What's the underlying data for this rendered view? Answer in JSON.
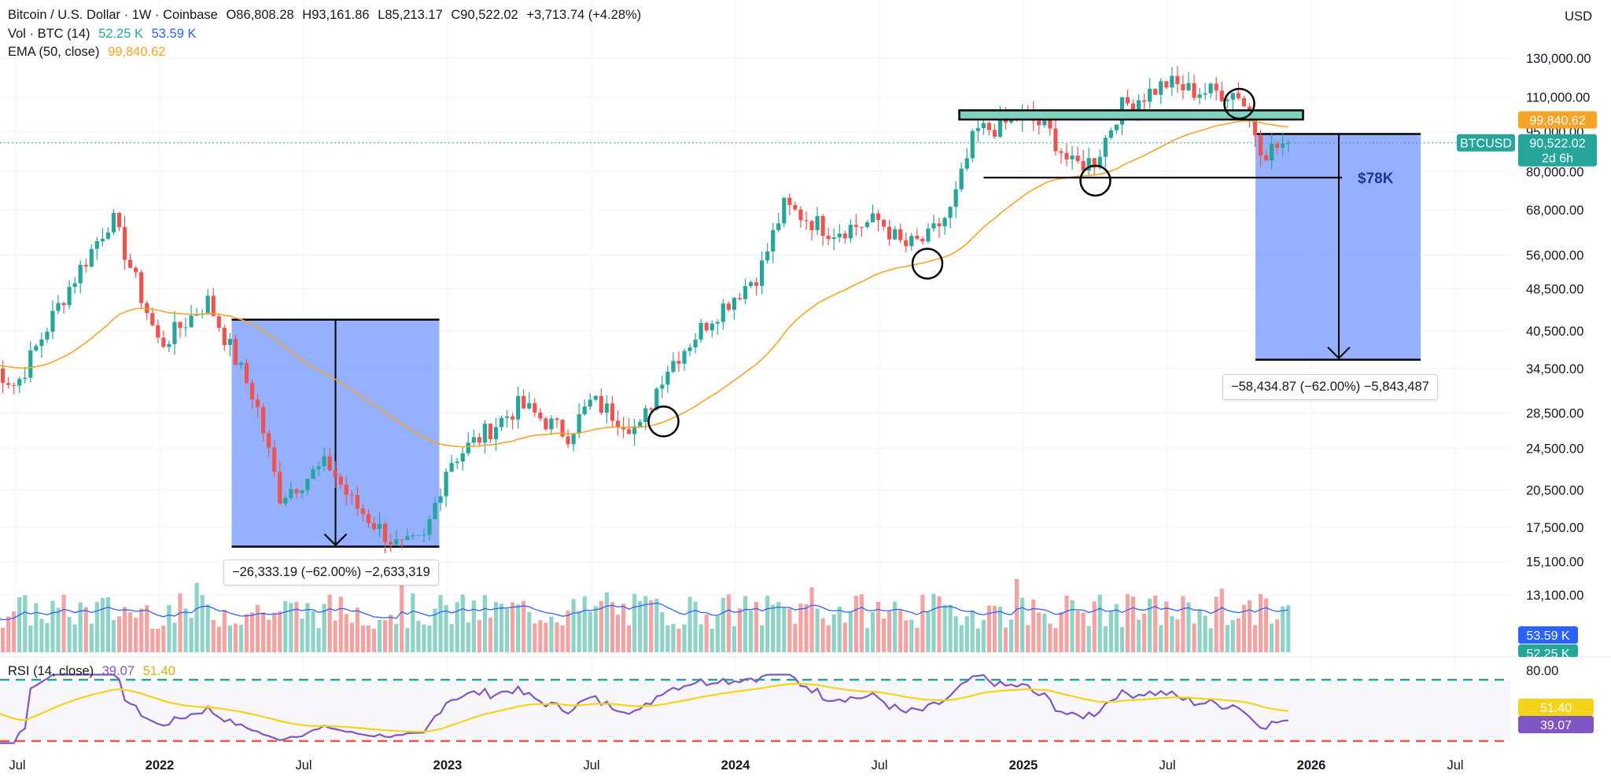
{
  "header": {
    "symbol": "Bitcoin / U.S. Dollar · 1W · Coinbase",
    "open": "O86,808.28",
    "high": "H93,161.86",
    "low": "L85,213.17",
    "close": "C90,522.02",
    "change": "+3,713.74 (+4.28%)",
    "vol_label": "Vol · BTC (14)",
    "vol_value1": "52.25 K",
    "vol_value2": "53.59 K",
    "ema_label": "EMA (50, close)",
    "ema_value": "99,840.62",
    "rsi_label": "RSI (14, close)",
    "rsi_value1": "39.07",
    "rsi_value2": "51.40",
    "currency": "USD"
  },
  "colors": {
    "up": "#26a69a",
    "down": "#ef5350",
    "vol_up": "#8fd2c7",
    "vol_down": "#f4a3a2",
    "ema": "#f7a325",
    "vol_ma": "#2962ff",
    "rsi": "#7e57c2",
    "rsi_ma": "#f5d31b",
    "box": "#7b9cff",
    "zone": "#7dd3bf"
  },
  "chart_data": {
    "type": "candlestick",
    "interval": "1W",
    "scale": "log",
    "x_ticks": [
      "Jul",
      "2022",
      "Jul",
      "2023",
      "Jul",
      "2024",
      "Jul",
      "2025",
      "Jul",
      "2026",
      "Jul"
    ],
    "y_ticks": [
      "130,000.00",
      "110,000.00",
      "95,000.00",
      "80,000.00",
      "68,000.00",
      "56,000.00",
      "48,500.00",
      "40,500.00",
      "34,500.00",
      "28,500.00",
      "24,500.00",
      "20,500.00",
      "17,500.00",
      "15,100.00",
      "13,100.00"
    ],
    "y_tick_values": [
      130000,
      110000,
      95000,
      80000,
      68000,
      56000,
      48500,
      40500,
      34500,
      28500,
      24500,
      20500,
      17500,
      15100,
      13100
    ],
    "anchors": [
      {
        "date": "2021-06",
        "price": 35000
      },
      {
        "date": "2021-07",
        "price": 32000
      },
      {
        "date": "2021-09",
        "price": 47000
      },
      {
        "date": "2021-11",
        "price": 66000
      },
      {
        "date": "2022-01",
        "price": 38000
      },
      {
        "date": "2022-03",
        "price": 46000
      },
      {
        "date": "2022-05",
        "price": 30000
      },
      {
        "date": "2022-06",
        "price": 20000
      },
      {
        "date": "2022-08",
        "price": 23000
      },
      {
        "date": "2022-09",
        "price": 19500
      },
      {
        "date": "2022-11",
        "price": 16000
      },
      {
        "date": "2022-12",
        "price": 16500
      },
      {
        "date": "2023-01",
        "price": 23000
      },
      {
        "date": "2023-04",
        "price": 29500
      },
      {
        "date": "2023-06",
        "price": 26000
      },
      {
        "date": "2023-07",
        "price": 30000
      },
      {
        "date": "2023-09",
        "price": 26500
      },
      {
        "date": "2023-10",
        "price": 34000
      },
      {
        "date": "2023-12",
        "price": 43000
      },
      {
        "date": "2024-02",
        "price": 52000
      },
      {
        "date": "2024-03",
        "price": 69000
      },
      {
        "date": "2024-05",
        "price": 62000
      },
      {
        "date": "2024-07",
        "price": 65000
      },
      {
        "date": "2024-08",
        "price": 58000
      },
      {
        "date": "2024-09",
        "price": 60000
      },
      {
        "date": "2024-10",
        "price": 68000
      },
      {
        "date": "2024-11",
        "price": 95000
      },
      {
        "date": "2024-12",
        "price": 97000
      },
      {
        "date": "2025-01",
        "price": 102000
      },
      {
        "date": "2025-02",
        "price": 96000
      },
      {
        "date": "2025-03",
        "price": 82000
      },
      {
        "date": "2025-04",
        "price": 84000
      },
      {
        "date": "2025-05",
        "price": 105000
      },
      {
        "date": "2025-07",
        "price": 117000
      },
      {
        "date": "2025-08",
        "price": 113000
      },
      {
        "date": "2025-10",
        "price": 112000
      },
      {
        "date": "2025-11",
        "price": 87000
      },
      {
        "date": "2025-12",
        "price": 90522
      }
    ],
    "ema": {
      "name": "EMA (50, close)",
      "last": 99840.62
    },
    "last_price": {
      "label": "BTCUSD",
      "value": "90,522.02",
      "countdown": "2d 6h"
    },
    "ema_tag": "99,840.62",
    "measure_2022": {
      "from": 42500,
      "to": 16100,
      "label": "−26,333.19 (−62.00%) −2,633,319"
    },
    "measure_2025": {
      "from": 94000,
      "to": 35800,
      "label": "−58,434.87 (−62.00%) −5,843,487",
      "note": "$78K"
    },
    "support_line": 78000,
    "resistance_zone": [
      100000,
      104000
    ],
    "volume": {
      "tags": [
        "53.59 K",
        "52.25 K"
      ]
    },
    "rsi": {
      "levels": [
        80,
        20
      ],
      "tick": "80.00",
      "tags": [
        "51.40",
        "39.07"
      ]
    }
  }
}
